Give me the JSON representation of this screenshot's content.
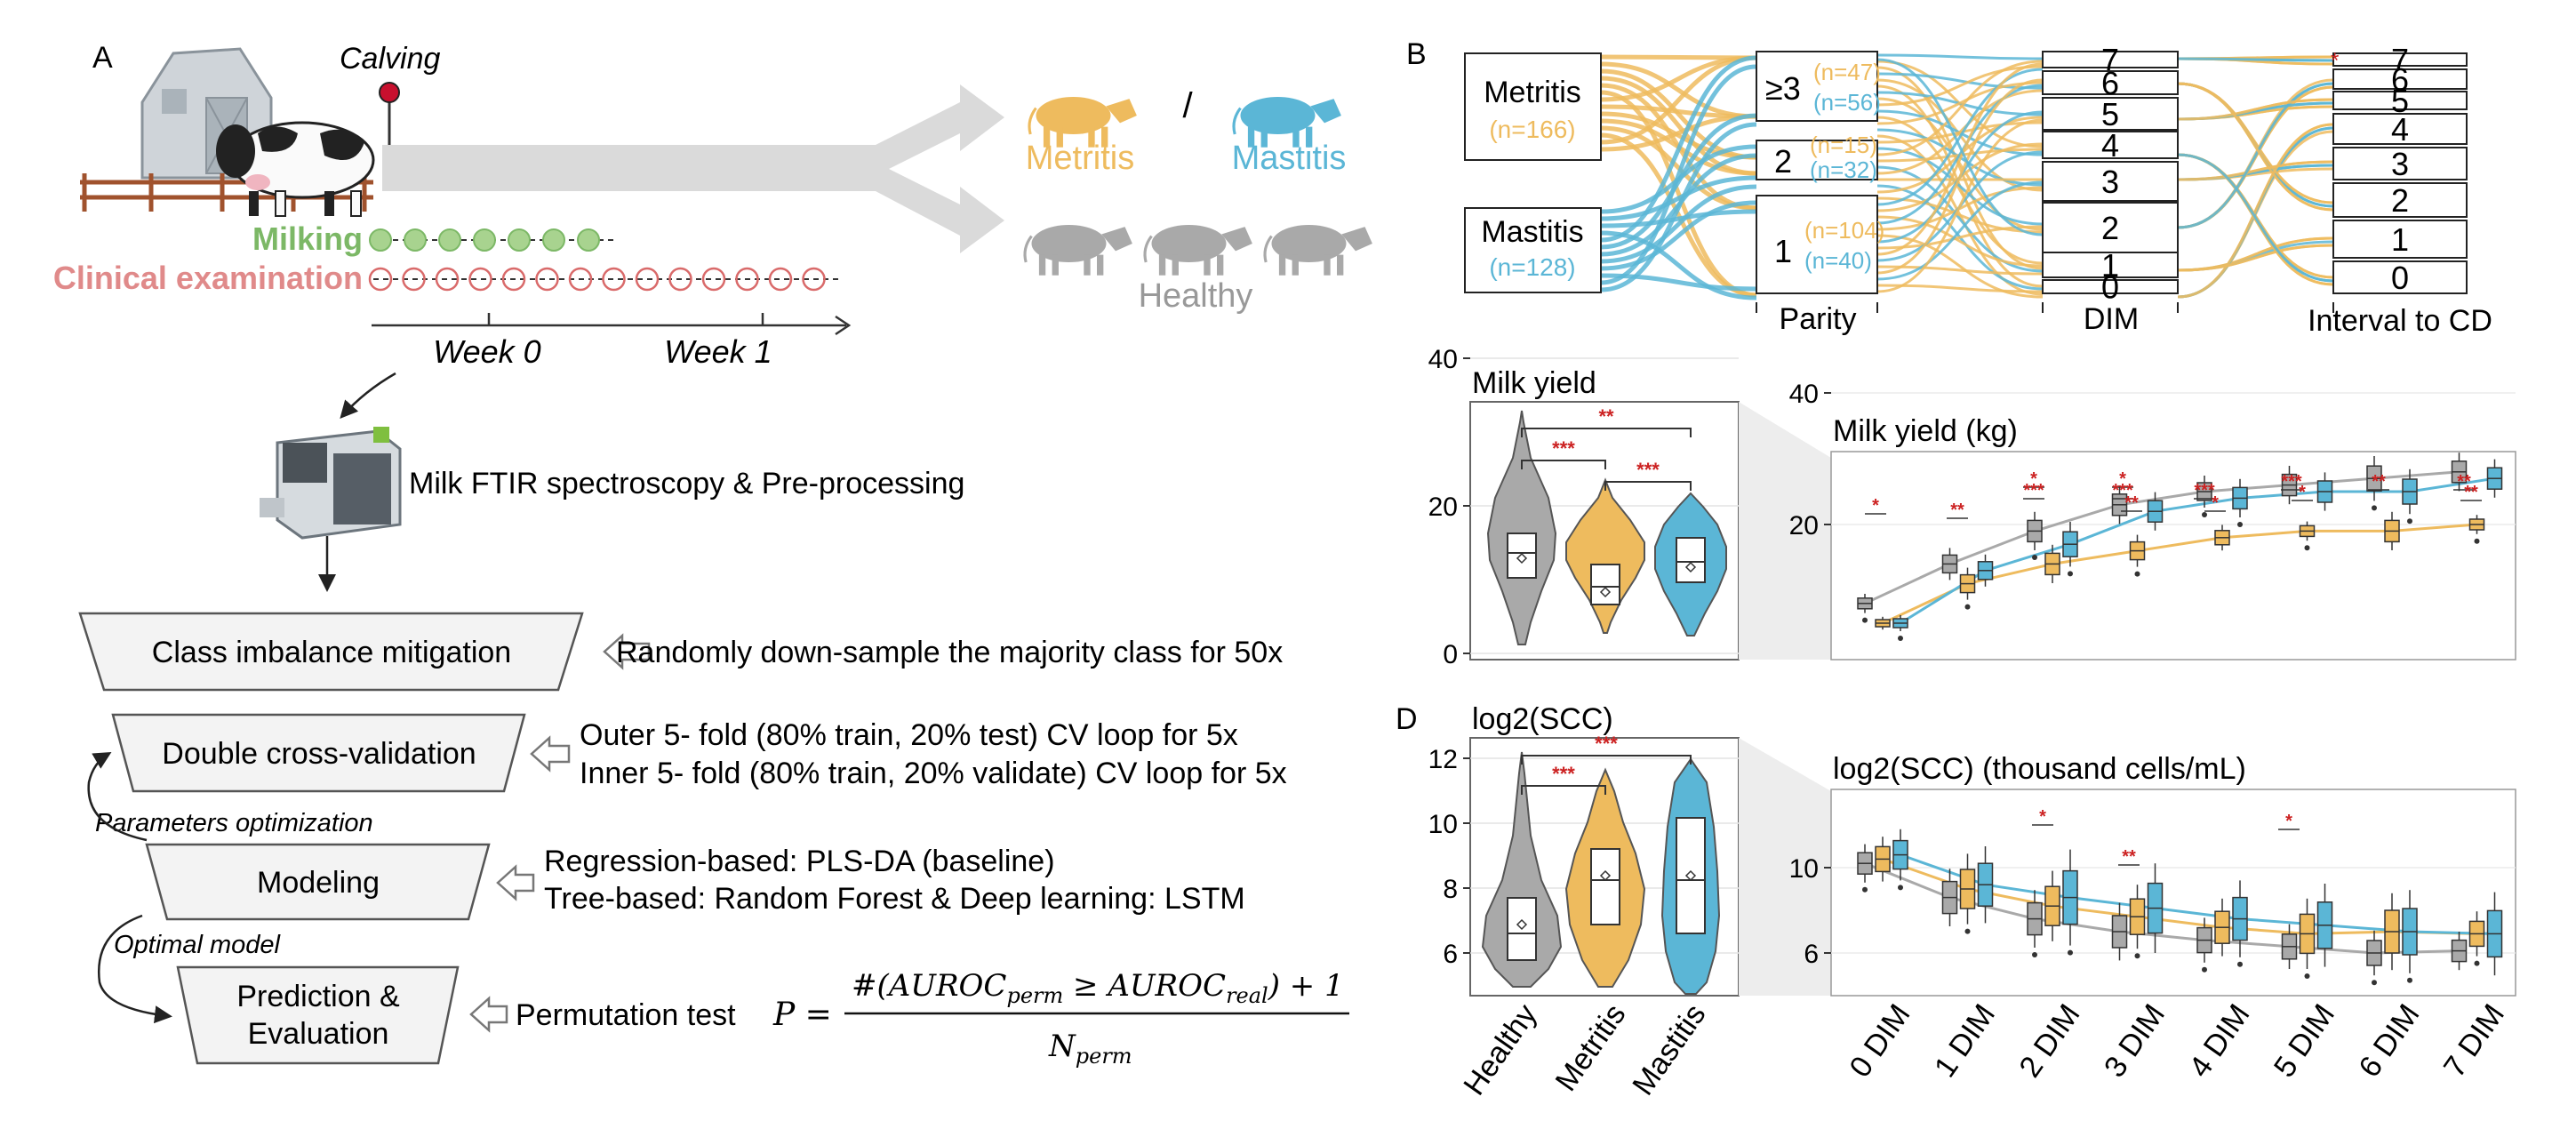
{
  "panel_a": {
    "letter": "A",
    "calving_label": "Calving",
    "milking_label": "Milking",
    "clinical_label": "Clinical examination",
    "week0": "Week 0",
    "week1": "Week 1",
    "metritis_label": "Metritis",
    "mastitis_label": "Mastitis",
    "slash": "/",
    "healthy_label": "Healthy",
    "ftir_label": "Milk FTIR spectroscopy & Pre-processing",
    "step1": "Class imbalance mitigation",
    "step1_desc": "Randomly down-sample the majority class for 50x",
    "step2": "Double cross-validation",
    "step2_desc1": "Outer 5- fold (80% train, 20% test) CV loop for 5x",
    "step2_desc2": "Inner 5- fold (80% train, 20% validate) CV loop for 5x",
    "param_opt": "Parameters optimization",
    "step3": "Modeling",
    "step3_desc1": "Regression-based: PLS-DA (baseline)",
    "step3_desc2": "Tree-based: Random Forest  & Deep learning: LSTM",
    "optimal_model": "Optimal model",
    "step4_l1": "Prediction &",
    "step4_l2": "Evaluation",
    "perm_label": "Permutation test",
    "formula_lhs": "P =",
    "formula_num": "#(AUROC",
    "formula_num_sub1": "perm",
    "formula_num_mid": " ≥ AUROC",
    "formula_num_sub2": "real",
    "formula_num_end": ") + 1",
    "formula_den": "N",
    "formula_den_sub": "perm"
  },
  "panel_b": {
    "letter": "B",
    "metritis": "Metritis",
    "metritis_n": "(n=166)",
    "mastitis": "Mastitis",
    "mastitis_n": "(n=128)",
    "parity_nodes": [
      {
        "label": "≥3",
        "n_met": "(n=47)",
        "n_mas": "(n=56)"
      },
      {
        "label": "2",
        "n_met": "(n=15)",
        "n_mas": "(n=32)"
      },
      {
        "label": "1",
        "n_met": "(n=104)",
        "n_mas": "(n=40)"
      }
    ],
    "dim_nodes": [
      "7",
      "6",
      "5",
      "4",
      "3",
      "2",
      "1",
      "0"
    ],
    "interval_nodes": [
      "7",
      "6",
      "5",
      "4",
      "3",
      "2",
      "1",
      "0"
    ],
    "axis_parity": "Parity",
    "axis_dim": "DIM",
    "axis_interval": "Interval to CD",
    "star": "*"
  },
  "colors": {
    "metritis": "#eebb5e",
    "mastitis": "#5bb6d6",
    "healthy": "#a9a9a9",
    "milking": "#7cb866",
    "clinical": "#e08a8a",
    "sig": "#cc2222"
  },
  "violin_milk": {
    "title": "Milk yield",
    "yticks": [
      "0",
      "20",
      "40"
    ],
    "sig": [
      "**",
      "***",
      "***"
    ]
  },
  "violin_scc": {
    "title": "log2(SCC)",
    "yticks": [
      "6",
      "8",
      "10",
      "12"
    ],
    "sig": [
      "***",
      "***"
    ]
  },
  "groups": [
    "Healthy",
    "Metritis",
    "Mastitis"
  ],
  "panel_d_letter": "D",
  "box_milk": {
    "title": "Milk yield (kg)",
    "yticks": [
      "20",
      "40"
    ],
    "sig_marks": [
      "*",
      "**",
      "*",
      "***",
      "*",
      "***",
      "**",
      "***",
      "*",
      "***",
      "*",
      "**",
      "**",
      "**"
    ]
  },
  "box_scc": {
    "title": "log2(SCC) (thousand cells/mL)",
    "yticks": [
      "6",
      "10"
    ],
    "sig_marks": [
      "*",
      "**",
      "*"
    ]
  },
  "dim_labels": [
    "0 DIM",
    "1 DIM",
    "2 DIM",
    "3 DIM",
    "4 DIM",
    "5 DIM",
    "6 DIM",
    "7 DIM"
  ],
  "chart_data": [
    {
      "type": "line",
      "title": "Milk yield (kg)",
      "categories": [
        "0 DIM",
        "1 DIM",
        "2 DIM",
        "3 DIM",
        "4 DIM",
        "5 DIM",
        "6 DIM",
        "7 DIM"
      ],
      "series": [
        {
          "name": "Healthy",
          "values": [
            8,
            14,
            19,
            23,
            25,
            26,
            27,
            28
          ]
        },
        {
          "name": "Metritis",
          "values": [
            5,
            11,
            14,
            16,
            18,
            19,
            19,
            20
          ]
        },
        {
          "name": "Mastitis",
          "values": [
            5,
            13,
            17,
            22,
            24,
            25,
            25,
            27
          ]
        }
      ],
      "ylim": [
        0,
        50
      ]
    },
    {
      "type": "line",
      "title": "log2(SCC) (thousand cells/mL)",
      "categories": [
        "0 DIM",
        "1 DIM",
        "2 DIM",
        "3 DIM",
        "4 DIM",
        "5 DIM",
        "6 DIM",
        "7 DIM"
      ],
      "series": [
        {
          "name": "Healthy",
          "values": [
            10.2,
            8.6,
            7.6,
            7.0,
            6.6,
            6.3,
            6.0,
            6.1
          ]
        },
        {
          "name": "Metritis",
          "values": [
            10.4,
            9.0,
            8.2,
            7.7,
            7.2,
            6.9,
            7.0,
            6.9
          ]
        },
        {
          "name": "Mastitis",
          "values": [
            10.6,
            9.2,
            8.6,
            8.1,
            7.6,
            7.3,
            7.0,
            6.9
          ]
        }
      ],
      "ylim": [
        4.5,
        13
      ]
    }
  ]
}
